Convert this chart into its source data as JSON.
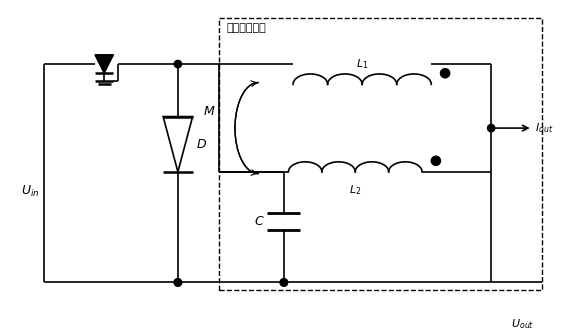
{
  "title": "纹波抑消电路",
  "label_Uin": "U$_{in}$",
  "label_Uout": "U$_{out}$",
  "label_Iout": "I$_{out}$",
  "label_D": "D",
  "label_M": "M",
  "label_C": "C",
  "label_L1": "L$_{1}$",
  "label_L2": "L$_{2}$",
  "bg_color": "white",
  "line_color": "black"
}
